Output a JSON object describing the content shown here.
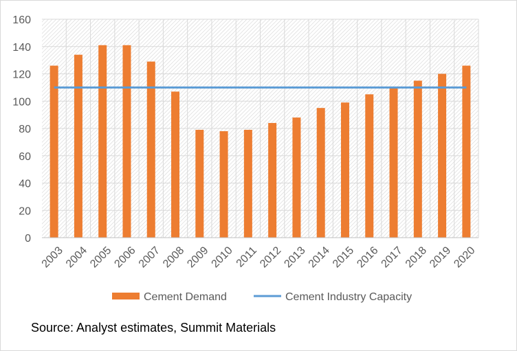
{
  "chart_data": {
    "type": "bar",
    "categories": [
      "2003",
      "2004",
      "2005",
      "2006",
      "2007",
      "2008",
      "2009",
      "2010",
      "2011",
      "2012",
      "2013",
      "2014",
      "2015",
      "2016",
      "2017",
      "2018",
      "2019",
      "2020"
    ],
    "series": [
      {
        "name": "Cement Demand",
        "type": "bar",
        "color": "#ED7D31",
        "values": [
          126,
          134,
          141,
          141,
          129,
          107,
          79,
          78,
          79,
          84,
          88,
          95,
          99,
          105,
          110,
          115,
          120,
          126
        ]
      },
      {
        "name": "Cement Industry Capacity",
        "type": "line",
        "color": "#5B9BD5",
        "values": [
          110,
          110,
          110,
          110,
          110,
          110,
          110,
          110,
          110,
          110,
          110,
          110,
          110,
          110,
          110,
          110,
          110,
          110
        ]
      }
    ],
    "ylim": [
      0,
      160
    ],
    "yticks": [
      0,
      20,
      40,
      60,
      80,
      100,
      120,
      140,
      160
    ],
    "grid": true,
    "legend_position": "bottom",
    "source_note": "Source: Analyst estimates, Summit Materials"
  }
}
